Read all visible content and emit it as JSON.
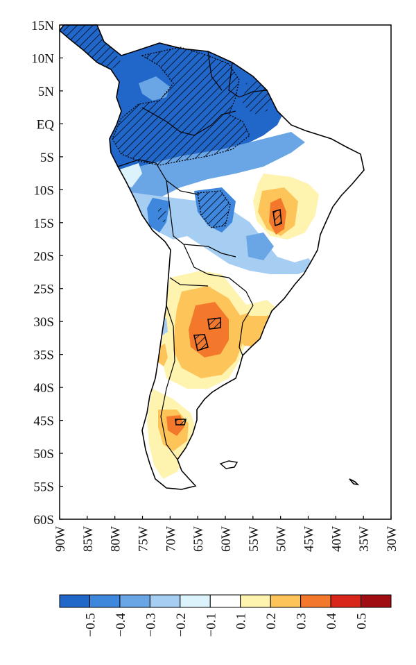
{
  "map": {
    "lat_labels": [
      "15N",
      "10N",
      "5N",
      "EQ",
      "5S",
      "10S",
      "15S",
      "20S",
      "25S",
      "30S",
      "35S",
      "40S",
      "45S",
      "50S",
      "55S",
      "60S"
    ],
    "lon_labels": [
      "90W",
      "85W",
      "80W",
      "75W",
      "70W",
      "65W",
      "60W",
      "55W",
      "50W",
      "45W",
      "40W",
      "35W",
      "30W"
    ],
    "extent": {
      "lon_min": -90,
      "lon_max": -30,
      "lat_min": -60,
      "lat_max": 15
    }
  },
  "colorbar": {
    "colors": [
      "#2166c9",
      "#3f87dc",
      "#6aa6e6",
      "#a6cdf2",
      "#dcf3fb",
      "#ffffff",
      "#fff3b0",
      "#fdc45a",
      "#f4782b",
      "#d9261c",
      "#a00d13"
    ],
    "labels": [
      "−0.5",
      "−0.4",
      "−0.3",
      "−0.2",
      "−0.1",
      "0.1",
      "0.2",
      "0.3",
      "0.4",
      "0.5"
    ]
  }
}
